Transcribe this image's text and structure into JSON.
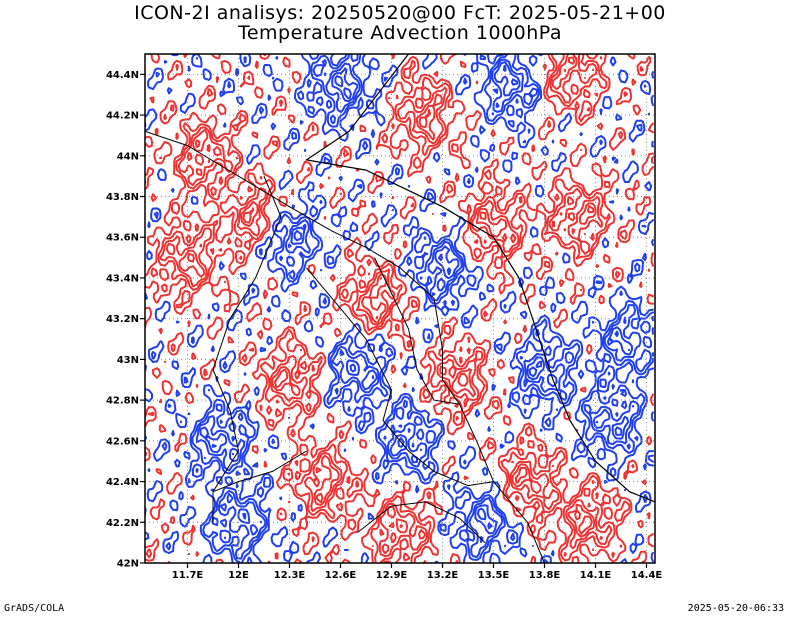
{
  "header": {
    "line1": "ICON-2I analisys: 20250520@00 FcT: 2025-05-21+00",
    "line2": "Temperature Advection 1000hPa"
  },
  "footer": {
    "left": "GrADS/COLA",
    "right": "2025-05-20-06:33"
  },
  "colors": {
    "positive": "#ee3333",
    "negative": "#2040ee",
    "border": "#000000",
    "coast": "#000000"
  },
  "chart_data": {
    "type": "contour",
    "title": "Temperature Advection 1000hPa",
    "xlabel": "",
    "ylabel": "",
    "xlim": [
      11.45,
      14.45
    ],
    "ylim": [
      42.0,
      44.5
    ],
    "x_ticks": [
      11.7,
      12.0,
      12.3,
      12.6,
      12.9,
      13.2,
      13.5,
      13.8,
      14.1,
      14.4
    ],
    "x_tick_labels": [
      "11.7E",
      "12E",
      "12.3E",
      "12.6E",
      "12.9E",
      "13.2E",
      "13.5E",
      "13.8E",
      "14.1E",
      "14.4E"
    ],
    "y_ticks": [
      42.0,
      42.2,
      42.4,
      42.6,
      42.8,
      43.0,
      43.2,
      43.4,
      43.6,
      43.8,
      44.0,
      44.2,
      44.4
    ],
    "y_tick_labels": [
      "42N",
      "42.2N",
      "42.4N",
      "42.6N",
      "42.8N",
      "43N",
      "43.2N",
      "43.4N",
      "43.6N",
      "43.8N",
      "44N",
      "44.2N",
      "44.4N"
    ],
    "grid": "dotted",
    "contour_levels": [
      -5,
      -4,
      -3,
      -2,
      -1,
      0,
      1,
      2,
      3,
      4,
      5
    ],
    "series": [
      {
        "name": "positive",
        "color": "#ee3333"
      },
      {
        "name": "negative",
        "color": "#2040ee"
      }
    ],
    "coastline": [
      [
        13.0,
        44.5
      ],
      [
        12.65,
        44.12
      ],
      [
        12.4,
        43.98
      ],
      [
        12.75,
        43.93
      ],
      [
        13.2,
        43.75
      ],
      [
        13.5,
        43.6
      ],
      [
        13.65,
        43.4
      ],
      [
        13.75,
        43.15
      ],
      [
        13.85,
        42.9
      ],
      [
        13.95,
        42.7
      ],
      [
        14.1,
        42.5
      ],
      [
        14.3,
        42.35
      ],
      [
        14.45,
        42.3
      ]
    ],
    "region_borders": [
      [
        [
          11.45,
          44.12
        ],
        [
          11.7,
          44.05
        ],
        [
          11.9,
          43.95
        ],
        [
          12.1,
          43.85
        ],
        [
          12.3,
          43.75
        ],
        [
          12.55,
          43.63
        ],
        [
          12.75,
          43.55
        ],
        [
          12.95,
          43.45
        ],
        [
          13.15,
          43.3
        ],
        [
          13.2,
          43.05
        ],
        [
          13.2,
          42.9
        ],
        [
          13.3,
          42.78
        ],
        [
          13.4,
          42.6
        ],
        [
          13.5,
          42.4
        ],
        [
          13.7,
          42.2
        ],
        [
          13.8,
          42.0
        ]
      ],
      [
        [
          12.15,
          43.9
        ],
        [
          12.25,
          43.7
        ],
        [
          12.1,
          43.4
        ],
        [
          11.95,
          43.2
        ],
        [
          11.85,
          42.95
        ],
        [
          11.95,
          42.75
        ],
        [
          12.0,
          42.55
        ],
        [
          11.85,
          42.35
        ],
        [
          11.85,
          42.2
        ]
      ],
      [
        [
          12.4,
          43.45
        ],
        [
          12.55,
          43.3
        ],
        [
          12.75,
          43.1
        ],
        [
          12.9,
          42.85
        ],
        [
          12.85,
          42.7
        ],
        [
          13.0,
          42.55
        ],
        [
          13.15,
          42.45
        ],
        [
          13.35,
          42.38
        ],
        [
          13.5,
          42.4
        ]
      ],
      [
        [
          12.8,
          43.5
        ],
        [
          13.0,
          43.15
        ],
        [
          13.05,
          42.95
        ],
        [
          13.15,
          42.8
        ],
        [
          13.3,
          42.78
        ]
      ],
      [
        [
          12.4,
          42.55
        ],
        [
          12.2,
          42.45
        ],
        [
          12.0,
          42.4
        ],
        [
          11.85,
          42.35
        ]
      ],
      [
        [
          12.7,
          42.15
        ],
        [
          12.9,
          42.28
        ],
        [
          13.1,
          42.3
        ],
        [
          13.3,
          42.22
        ],
        [
          13.45,
          42.1
        ]
      ]
    ],
    "field_centers": [
      {
        "x": 11.8,
        "y": 44.0,
        "sign": "positive"
      },
      {
        "x": 12.1,
        "y": 43.7,
        "sign": "positive"
      },
      {
        "x": 11.7,
        "y": 43.5,
        "sign": "positive"
      },
      {
        "x": 12.6,
        "y": 44.35,
        "sign": "negative"
      },
      {
        "x": 13.1,
        "y": 44.2,
        "sign": "positive"
      },
      {
        "x": 13.6,
        "y": 44.35,
        "sign": "negative"
      },
      {
        "x": 13.95,
        "y": 44.4,
        "sign": "positive"
      },
      {
        "x": 12.3,
        "y": 43.6,
        "sign": "negative"
      },
      {
        "x": 12.8,
        "y": 43.3,
        "sign": "positive"
      },
      {
        "x": 12.7,
        "y": 42.95,
        "sign": "negative"
      },
      {
        "x": 12.3,
        "y": 42.9,
        "sign": "positive"
      },
      {
        "x": 11.9,
        "y": 42.6,
        "sign": "negative"
      },
      {
        "x": 12.0,
        "y": 42.2,
        "sign": "negative"
      },
      {
        "x": 12.5,
        "y": 42.4,
        "sign": "positive"
      },
      {
        "x": 13.0,
        "y": 42.6,
        "sign": "negative"
      },
      {
        "x": 13.3,
        "y": 42.9,
        "sign": "positive"
      },
      {
        "x": 13.2,
        "y": 43.45,
        "sign": "negative"
      },
      {
        "x": 13.5,
        "y": 43.65,
        "sign": "positive"
      },
      {
        "x": 14.0,
        "y": 43.7,
        "sign": "positive"
      },
      {
        "x": 14.3,
        "y": 43.1,
        "sign": "negative"
      },
      {
        "x": 13.8,
        "y": 42.95,
        "sign": "negative"
      },
      {
        "x": 14.2,
        "y": 42.7,
        "sign": "negative"
      },
      {
        "x": 13.7,
        "y": 42.4,
        "sign": "positive"
      },
      {
        "x": 14.05,
        "y": 42.2,
        "sign": "positive"
      },
      {
        "x": 13.45,
        "y": 42.2,
        "sign": "negative"
      },
      {
        "x": 12.95,
        "y": 42.15,
        "sign": "positive"
      }
    ]
  }
}
